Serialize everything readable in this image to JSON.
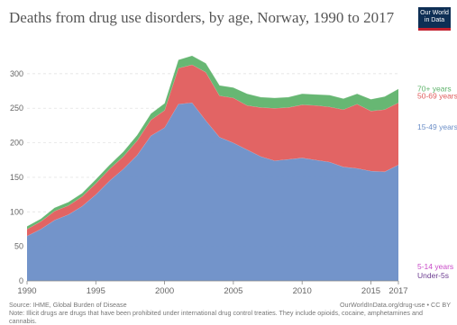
{
  "header": {
    "title": "Deaths from drug use disorders, by age, Norway, 1990 to 2017",
    "logo_line1": "Our World",
    "logo_line2": "in Data"
  },
  "footer": {
    "source": "Source: IHME, Global Burden of Disease",
    "credit": "OurWorldInData.org/drug-use • CC BY",
    "note": "Note: Illicit drugs are drugs that have been prohibited under international drug control treaties. They include opioids, cocaine, amphetamines and cannabis."
  },
  "chart_data": {
    "type": "area",
    "stacked": true,
    "title": "Deaths from drug use disorders, by age, Norway, 1990 to 2017",
    "x": [
      1990,
      1991,
      1992,
      1993,
      1994,
      1995,
      1996,
      1997,
      1998,
      1999,
      2000,
      2001,
      2002,
      2003,
      2004,
      2005,
      2006,
      2007,
      2008,
      2009,
      2010,
      2011,
      2012,
      2013,
      2014,
      2015,
      2016,
      2017
    ],
    "xticks": [
      1990,
      1995,
      2000,
      2005,
      2010,
      2015,
      2017
    ],
    "yticks": [
      0,
      50,
      100,
      150,
      200,
      250,
      300
    ],
    "ylim": [
      0,
      335
    ],
    "grid": true,
    "legend_placement": "right",
    "series": [
      {
        "name": "Under-5s",
        "color": "#6d3e91",
        "values": [
          0,
          0,
          0,
          0,
          0,
          0,
          0,
          0,
          0,
          0,
          0,
          0,
          0,
          0,
          0,
          0,
          0,
          0,
          0,
          0,
          0,
          0,
          0,
          0,
          0,
          0,
          0,
          0
        ]
      },
      {
        "name": "5-14 years",
        "color": "#c94bc8",
        "values": [
          0,
          0,
          0,
          0,
          0,
          0,
          0,
          0,
          0,
          0,
          0,
          0,
          0,
          0,
          0,
          0,
          0,
          0,
          0,
          0,
          0,
          0,
          0,
          0,
          0,
          0,
          0,
          0
        ]
      },
      {
        "name": "15-49 years",
        "color": "#6b8ec7",
        "values": [
          65,
          75,
          88,
          96,
          108,
          125,
          145,
          162,
          182,
          210,
          222,
          256,
          258,
          232,
          208,
          200,
          190,
          180,
          174,
          176,
          178,
          175,
          172,
          165,
          163,
          159,
          158,
          168
        ]
      },
      {
        "name": "50-69 years",
        "color": "#e05c5c",
        "values": [
          10,
          11,
          13,
          13,
          14,
          16,
          17,
          18,
          21,
          23,
          25,
          52,
          55,
          70,
          60,
          65,
          64,
          71,
          76,
          75,
          77,
          79,
          80,
          83,
          93,
          87,
          90,
          90
        ]
      },
      {
        "name": "70+ years",
        "color": "#5fb36b",
        "values": [
          4,
          4,
          5,
          5,
          5,
          6,
          6,
          7,
          8,
          9,
          10,
          12,
          13,
          13,
          15,
          15,
          17,
          15,
          15,
          15,
          16,
          16,
          17,
          16,
          15,
          17,
          19,
          20
        ]
      }
    ],
    "legend_labels": [
      "70+ years",
      "50-69 years",
      "15-49 years",
      "5-14 years",
      "Under-5s"
    ]
  }
}
